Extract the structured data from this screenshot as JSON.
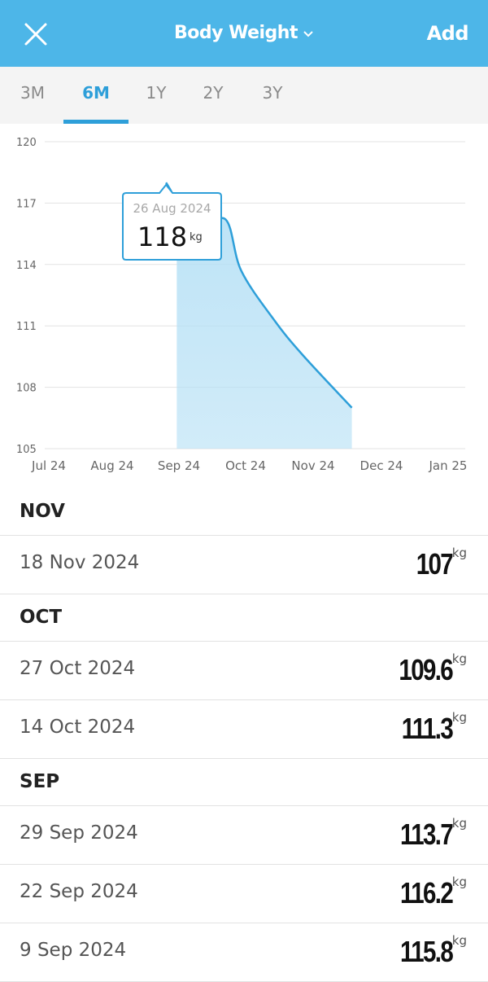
{
  "header": {
    "title": "Body Weight",
    "add_label": "Add"
  },
  "tabs": [
    {
      "label": "3M",
      "active": false
    },
    {
      "label": "6M",
      "active": true
    },
    {
      "label": "1Y",
      "active": false
    },
    {
      "label": "2Y",
      "active": false
    },
    {
      "label": "3Y",
      "active": false
    }
  ],
  "tooltip": {
    "date": "26 Aug 2024",
    "value": "118",
    "unit": "kg"
  },
  "colors": {
    "accent": "#2e9fd9",
    "header": "#4db6e8",
    "fill": "#b3dff5"
  },
  "chart_data": {
    "type": "area",
    "x_ticks": [
      "Jul 24",
      "Aug 24",
      "Sep 24",
      "Oct 24",
      "Nov 24",
      "Dec 24",
      "Jan 25"
    ],
    "y_ticks": [
      "120",
      "117",
      "114",
      "111",
      "108",
      "105"
    ],
    "ylim": [
      105,
      120
    ],
    "grid": true,
    "series": [
      {
        "x": [
          "2024-08-26",
          "2024-09-09",
          "2024-09-22",
          "2024-09-29",
          "2024-10-14",
          "2024-10-27",
          "2024-11-18"
        ],
        "values": [
          118,
          115.8,
          116.2,
          113.7,
          111.3,
          109.6,
          107
        ]
      }
    ]
  },
  "list": {
    "sections": [
      {
        "heading": "NOV",
        "rows": [
          {
            "date": "18 Nov 2024",
            "value": "107",
            "unit": "kg"
          }
        ]
      },
      {
        "heading": "OCT",
        "rows": [
          {
            "date": "27 Oct 2024",
            "value": "109.6",
            "unit": "kg"
          },
          {
            "date": "14 Oct 2024",
            "value": "111.3",
            "unit": "kg"
          }
        ]
      },
      {
        "heading": "SEP",
        "rows": [
          {
            "date": "29 Sep 2024",
            "value": "113.7",
            "unit": "kg"
          },
          {
            "date": "22 Sep 2024",
            "value": "116.2",
            "unit": "kg"
          },
          {
            "date": "9 Sep 2024",
            "value": "115.8",
            "unit": "kg"
          }
        ]
      }
    ]
  }
}
